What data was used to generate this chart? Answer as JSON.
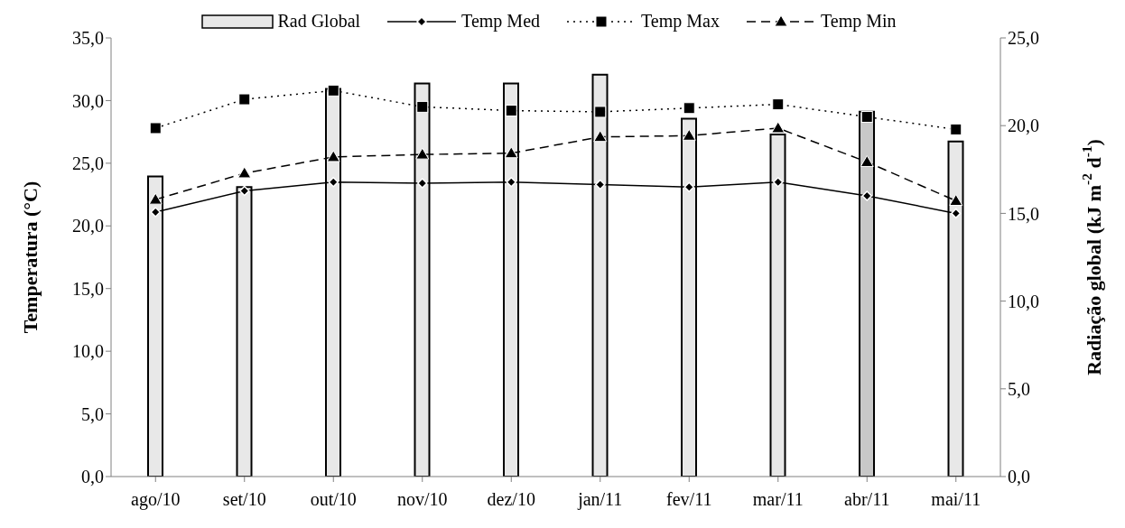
{
  "chart_data": {
    "type": "bar",
    "categories": [
      "ago/10",
      "set/10",
      "out/10",
      "nov/10",
      "dez/10",
      "jan/11",
      "fev/11",
      "mar/11",
      "abr/11",
      "mai/11"
    ],
    "series": [
      {
        "name": "Rad Global",
        "axis": "y2",
        "color": "#e8e8e8",
        "colors": [
          "#e8e8e8",
          "#e8e8e8",
          "#e8e8e8",
          "#e8e8e8",
          "#e8e8e8",
          "#e8e8e8",
          "#e8e8e8",
          "#e8e8e8",
          "#c8c8c8",
          "#e8e8e8"
        ],
        "values": [
          17.1,
          16.5,
          22.1,
          22.4,
          22.4,
          22.9,
          20.4,
          19.5,
          20.8,
          19.1
        ]
      },
      {
        "name": "Temp Med",
        "type": "line",
        "color": "#000000",
        "marker": "diamond",
        "line_style": "solid",
        "values": [
          21.1,
          22.8,
          23.5,
          23.4,
          23.5,
          23.3,
          23.1,
          23.5,
          22.4,
          21.0
        ]
      },
      {
        "name": "Temp Max",
        "type": "line",
        "color": "#000000",
        "marker": "square",
        "line_style": "dotted",
        "values": [
          27.8,
          30.1,
          30.8,
          29.5,
          29.2,
          29.1,
          29.4,
          29.7,
          28.7,
          27.7
        ]
      },
      {
        "name": "Temp Min",
        "type": "line",
        "color": "#000000",
        "marker": "triangle",
        "line_style": "dashed",
        "values": [
          22.1,
          24.2,
          25.5,
          25.7,
          25.8,
          27.1,
          27.2,
          27.8,
          25.1,
          22.0
        ]
      }
    ],
    "ylabel": "Temperatura (°C)",
    "y2label": "Radiação global (kJ m$^{-2}$ d$^{-1}$)",
    "ylim": [
      0,
      35
    ],
    "yticks": [
      {
        "value": 0,
        "label": "0,0"
      },
      {
        "value": 5,
        "label": "5,0"
      },
      {
        "value": 10,
        "label": "10,0"
      },
      {
        "value": 15,
        "label": "15,0"
      },
      {
        "value": 20,
        "label": "20,0"
      },
      {
        "value": 25,
        "label": "25,0"
      },
      {
        "value": 30,
        "label": "30,0"
      },
      {
        "value": 35,
        "label": "35,0"
      }
    ],
    "y2lim": [
      0,
      25
    ],
    "y2ticks": [
      {
        "value": 0,
        "label": "0,0"
      },
      {
        "value": 5,
        "label": "5,0"
      },
      {
        "value": 10,
        "label": "10,0"
      },
      {
        "value": 15,
        "label": "15,0"
      },
      {
        "value": 20,
        "label": "20,0"
      },
      {
        "value": 25,
        "label": "25,0"
      }
    ],
    "legend": "top"
  }
}
